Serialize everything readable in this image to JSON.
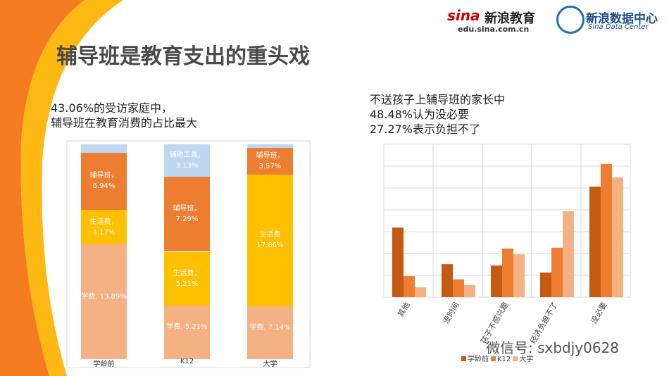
{
  "header": {
    "title": "辅导班是教育支出的重头戏",
    "logo1": "新浪教育",
    "logo1_brand": "sina",
    "logo1_url": "edu.sina.com.cn",
    "logo2": "新浪数据中心",
    "logo2_sub": "Sina Data Center",
    "watermark": "微信号: sxbdjy0628"
  },
  "chart_data": [
    {
      "type": "stacked_bar_100",
      "notes": [
        "43.06%的受访家庭中，",
        "辅导班在教育消费的占比最大"
      ],
      "categories": [
        "学龄前",
        "K12",
        "大学"
      ],
      "series": [
        {
          "name": "学费",
          "color": "#f4b183",
          "values": [
            13.89,
            5.21,
            7.14
          ],
          "value_labels": [
            "学费, 13.89%",
            "学费, 5.21%",
            "学费, 7.14%"
          ]
        },
        {
          "name": "生活费",
          "color": "#ffc000",
          "values": [
            4.17,
            5.21,
            17.86
          ],
          "value_labels": [
            "生活费，\n4.17%",
            "生活费，\n5.21%",
            "生活费\n17.86%"
          ]
        },
        {
          "name": "辅导班",
          "color": "#ed7d31",
          "values": [
            6.94,
            7.29,
            3.57
          ],
          "value_labels": [
            "辅导班，\n6.94%",
            "辅导班，\n7.29%",
            "辅导班，\n3.57%"
          ]
        },
        {
          "name": "辅助工具",
          "color": "#bdd7ee",
          "values": [
            1.0,
            3.13,
            0.5
          ],
          "value_labels": [
            null,
            "辅助工具，\n3.13%",
            null
          ]
        }
      ]
    },
    {
      "type": "grouped_bar",
      "notes": [
        "不送孩子上辅导班的家长中",
        "48.48%认为没必要",
        "27.27%表示负担不了"
      ],
      "categories": [
        "其他",
        "没时间",
        "孩子不感兴趣",
        "经济负担不了",
        "没必要"
      ],
      "ylim": [
        0,
        56
      ],
      "yticks": [
        0,
        8,
        16,
        24,
        32,
        40,
        48,
        56
      ],
      "grid": true,
      "legend": "bottom",
      "series": [
        {
          "name": "学龄前",
          "color": "#c55a11",
          "values": [
            25.5,
            12.1,
            11.6,
            9.0,
            40.5
          ]
        },
        {
          "name": "K12",
          "color": "#ed7d31",
          "values": [
            7.7,
            6.5,
            17.8,
            18.1,
            48.8
          ]
        },
        {
          "name": "大学",
          "color": "#f4b183",
          "values": [
            3.6,
            4.4,
            15.7,
            31.5,
            43.9
          ]
        }
      ]
    }
  ]
}
